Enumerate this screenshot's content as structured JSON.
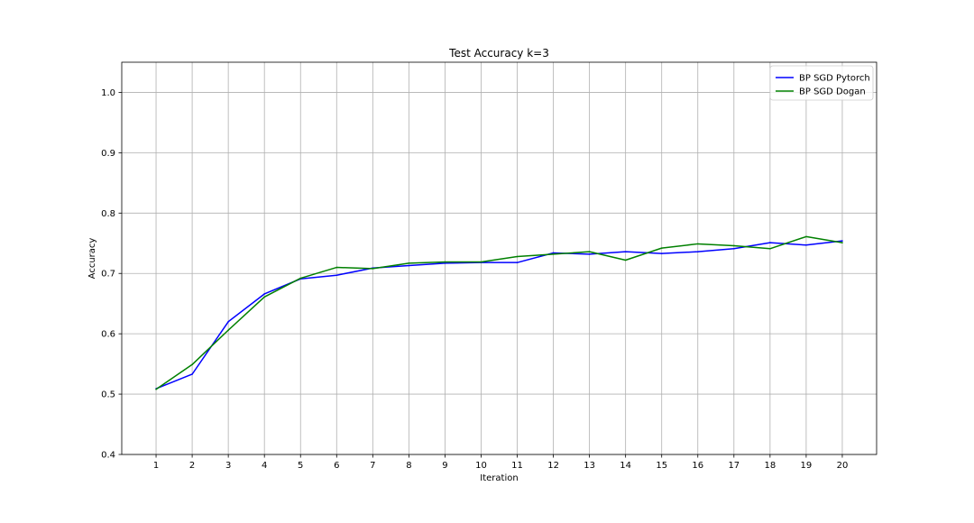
{
  "chart_data": {
    "type": "line",
    "title": "Test Accuracy k=3",
    "xlabel": "Iteration",
    "ylabel": "Accuracy",
    "x": [
      1,
      2,
      3,
      4,
      5,
      6,
      7,
      8,
      9,
      10,
      11,
      12,
      13,
      14,
      15,
      16,
      17,
      18,
      19,
      20
    ],
    "xlim": [
      0.05,
      20.95
    ],
    "ylim": [
      0.4,
      1.05
    ],
    "yticks": [
      0.4,
      0.5,
      0.6,
      0.7,
      0.8,
      0.9,
      1.0
    ],
    "ytick_labels": [
      "0.4",
      "0.5",
      "0.6",
      "0.7",
      "0.8",
      "0.9",
      "1.0"
    ],
    "grid": true,
    "legend_position": "top-right",
    "series": [
      {
        "name": "BP SGD Pytorch",
        "color": "#0000ff",
        "values": [
          0.509,
          0.533,
          0.62,
          0.666,
          0.691,
          0.697,
          0.709,
          0.713,
          0.717,
          0.718,
          0.718,
          0.734,
          0.732,
          0.736,
          0.733,
          0.736,
          0.741,
          0.751,
          0.747,
          0.754
        ]
      },
      {
        "name": "BP SGD Dogan",
        "color": "#008000",
        "values": [
          0.508,
          0.549,
          0.606,
          0.661,
          0.692,
          0.71,
          0.708,
          0.717,
          0.719,
          0.719,
          0.728,
          0.732,
          0.736,
          0.722,
          0.742,
          0.749,
          0.746,
          0.741,
          0.761,
          0.751
        ]
      }
    ]
  }
}
